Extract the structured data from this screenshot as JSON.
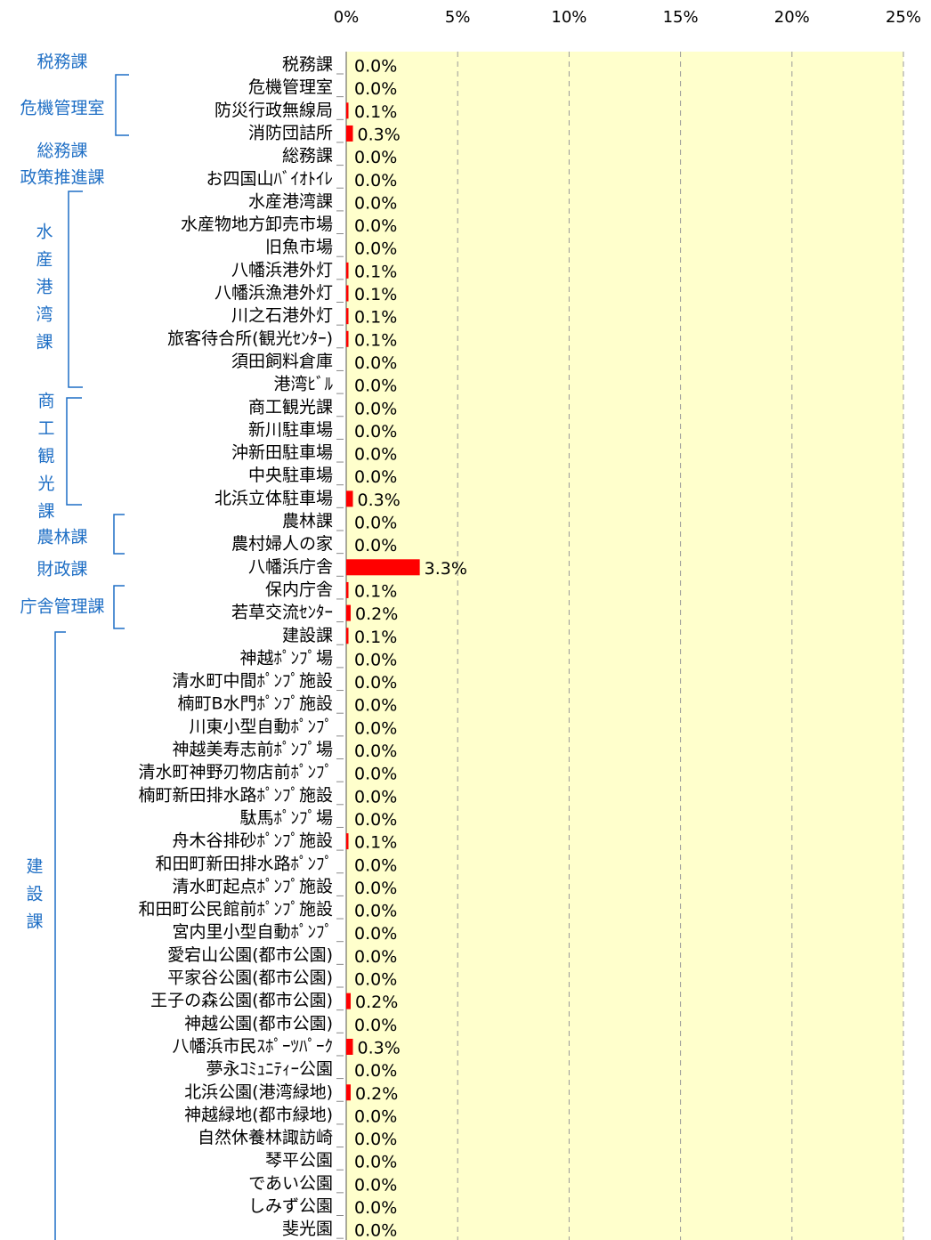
{
  "chart_data": {
    "type": "bar",
    "orientation": "horizontal",
    "color": "#ff0000",
    "grid": true,
    "xlim": [
      0,
      25
    ],
    "xticks": [
      {
        "value": 0,
        "label": "0%"
      },
      {
        "value": 5,
        "label": "5%"
      },
      {
        "value": 10,
        "label": "10%"
      },
      {
        "value": 15,
        "label": "15%"
      },
      {
        "value": 20,
        "label": "20%"
      },
      {
        "value": 25,
        "label": "25%"
      }
    ],
    "groups": [
      "税務課",
      "危機管理室",
      "総務課",
      "政策推進課",
      "水産港湾課",
      "商工観光課",
      "農林課",
      "財政課",
      "庁舎管理課",
      "建設課"
    ],
    "categories": [
      "税務課",
      "危機管理室",
      "防災行政無線局",
      "消防団詰所",
      "総務課",
      "お四国山ﾊﾞｲｵﾄｲﾚ",
      "水産港湾課",
      "水産物地方卸売市場",
      "旧魚市場",
      "八幡浜港外灯",
      "八幡浜漁港外灯",
      "川之石港外灯",
      "旅客待合所(観光ｾﾝﾀｰ)",
      "須田飼料倉庫",
      "港湾ﾋﾞﾙ",
      "商工観光課",
      "新川駐車場",
      "沖新田駐車場",
      "中央駐車場",
      "北浜立体駐車場",
      "農林課",
      "農村婦人の家",
      "八幡浜庁舎",
      "保内庁舎",
      "若草交流ｾﾝﾀｰ",
      "建設課",
      "神越ﾎﾟﾝﾌﾟ場",
      "清水町中間ﾎﾟﾝﾌﾟ施設",
      "楠町B水門ﾎﾟﾝﾌﾟ施設",
      "川東小型自動ﾎﾟﾝﾌﾟ",
      "神越美寿志前ﾎﾟﾝﾌﾟ場",
      "清水町神野刃物店前ﾎﾟﾝﾌﾟ",
      "楠町新田排水路ﾎﾟﾝﾌﾟ施設",
      "駄馬ﾎﾟﾝﾌﾟ場",
      "舟木谷排砂ﾎﾟﾝﾌﾟ施設",
      "和田町新田排水路ﾎﾟﾝﾌﾟ",
      "清水町起点ﾎﾟﾝﾌﾟ施設",
      "和田町公民館前ﾎﾟﾝﾌﾟ施設",
      "宮内里小型自動ﾎﾟﾝﾌﾟ",
      "愛宕山公園(都市公園)",
      "平家谷公園(都市公園)",
      "王子の森公園(都市公園)",
      "神越公園(都市公園)",
      "八幡浜市民ｽﾎﾟｰﾂﾊﾟｰｸ",
      "夢永ｺﾐｭﾆﾃｨｰ公園",
      "北浜公園(港湾緑地)",
      "神越緑地(都市緑地)",
      "自然休養林諏訪崎",
      "琴平公園",
      "であい公園",
      "しみず公園",
      "斐光園"
    ],
    "values": [
      0.0,
      0.0,
      0.1,
      0.3,
      0.0,
      0.0,
      0.0,
      0.0,
      0.0,
      0.1,
      0.1,
      0.1,
      0.1,
      0.0,
      0.0,
      0.0,
      0.0,
      0.0,
      0.0,
      0.3,
      0.0,
      0.0,
      3.3,
      0.1,
      0.2,
      0.1,
      0.0,
      0.0,
      0.0,
      0.0,
      0.0,
      0.0,
      0.0,
      0.0,
      0.1,
      0.0,
      0.0,
      0.0,
      0.0,
      0.0,
      0.0,
      0.2,
      0.0,
      0.3,
      0.0,
      0.2,
      0.0,
      0.0,
      0.0,
      0.0,
      0.0,
      0.0
    ],
    "value_labels": [
      "0.0%",
      "0.0%",
      "0.1%",
      "0.3%",
      "0.0%",
      "0.0%",
      "0.0%",
      "0.0%",
      "0.0%",
      "0.1%",
      "0.1%",
      "0.1%",
      "0.1%",
      "0.0%",
      "0.0%",
      "0.0%",
      "0.0%",
      "0.0%",
      "0.0%",
      "0.3%",
      "0.0%",
      "0.0%",
      "3.3%",
      "0.1%",
      "0.2%",
      "0.1%",
      "0.0%",
      "0.0%",
      "0.0%",
      "0.0%",
      "0.0%",
      "0.0%",
      "0.0%",
      "0.0%",
      "0.1%",
      "0.0%",
      "0.0%",
      "0.0%",
      "0.0%",
      "0.0%",
      "0.0%",
      "0.2%",
      "0.0%",
      "0.3%",
      "0.0%",
      "0.2%",
      "0.0%",
      "0.0%",
      "0.0%",
      "0.0%",
      "0.0%",
      "0.0%"
    ]
  }
}
